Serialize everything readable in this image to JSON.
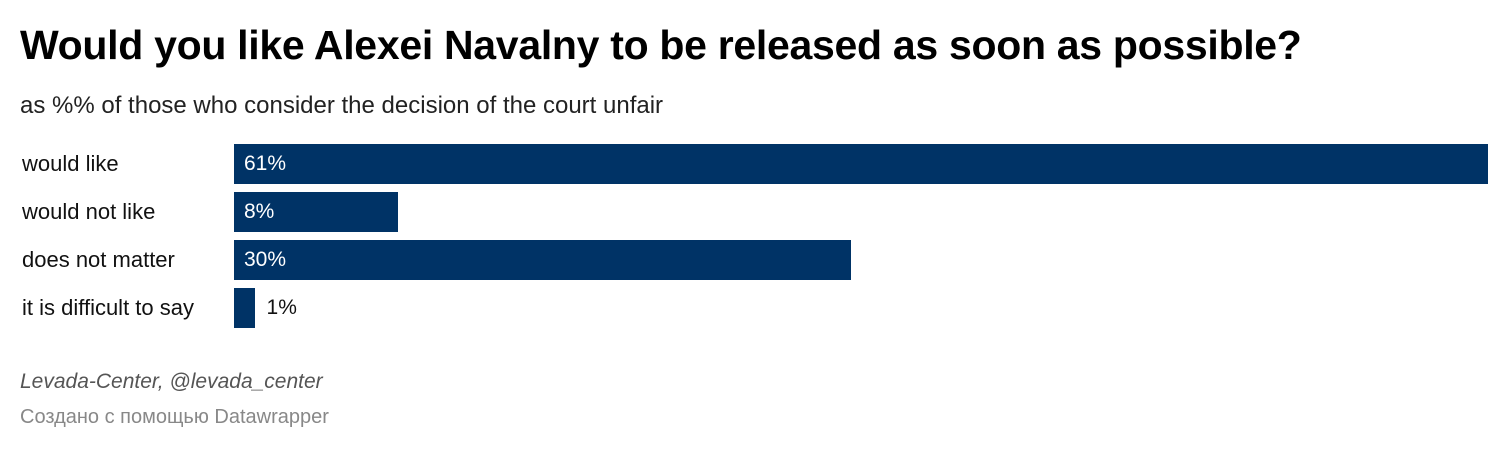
{
  "chart_data": {
    "type": "bar",
    "orientation": "horizontal",
    "title": "Would you like Alexei Navalny to be released as soon as possible?",
    "subtitle": "as %% of those who consider the decision of the court unfair",
    "categories": [
      "would like",
      "would not like",
      "does not matter",
      "it is difficult to say"
    ],
    "values": [
      61,
      8,
      30,
      1
    ],
    "value_labels": [
      "61%",
      "8%",
      "30%",
      "1%"
    ],
    "xlim": [
      0,
      61
    ],
    "bar_color": "#003366",
    "grid": false
  },
  "footer": {
    "source": "Levada-Center, @levada_center",
    "credit": "Создано с помощью Datawrapper"
  }
}
